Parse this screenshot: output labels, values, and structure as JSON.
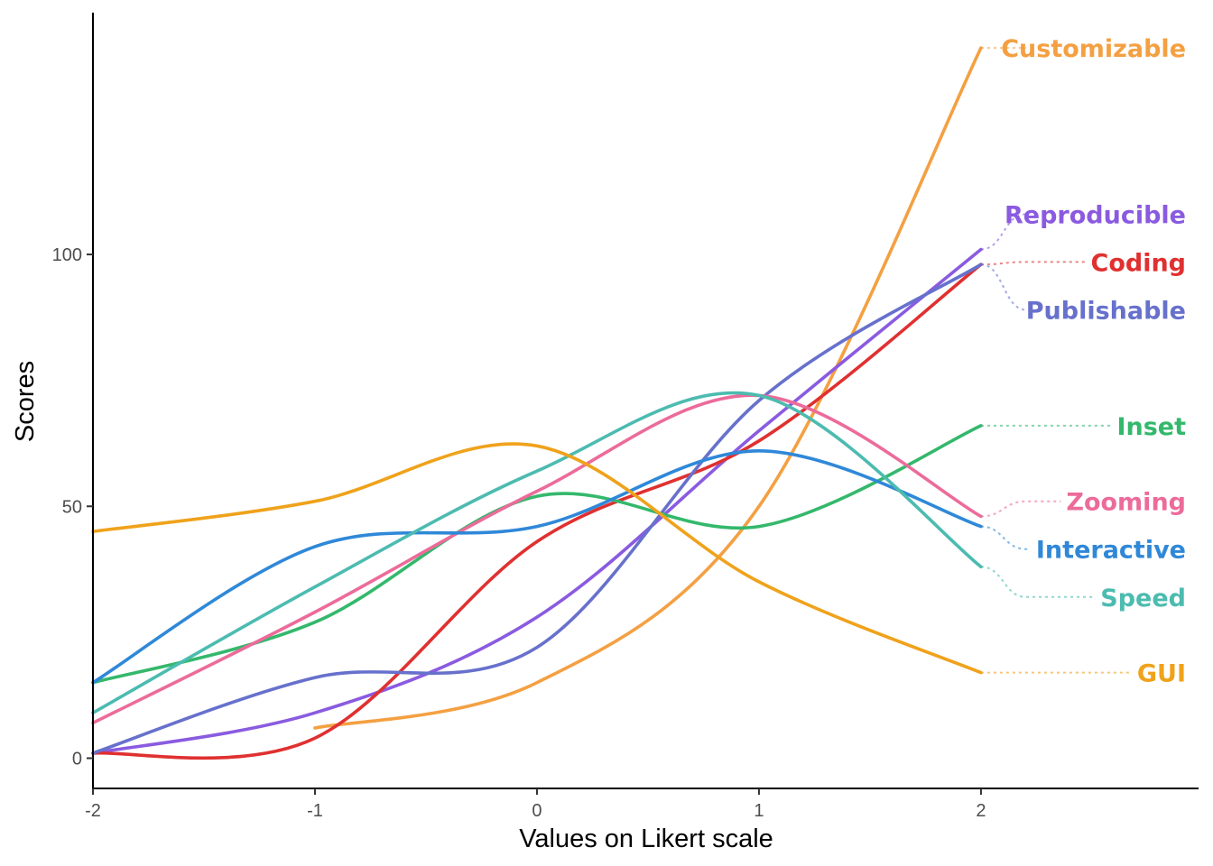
{
  "chart_data": {
    "type": "line",
    "xlabel": "Values on Likert scale",
    "ylabel": "Scores",
    "xlim": [
      -2,
      2.98
    ],
    "ylim": [
      -6,
      148
    ],
    "x_ticks": [
      -2,
      -1,
      0,
      1,
      2
    ],
    "x_tick_labels": [
      "-2",
      "-1",
      "0",
      "1",
      "2"
    ],
    "y_ticks": [
      0,
      50,
      100
    ],
    "y_tick_labels": [
      "0",
      "50",
      "100"
    ],
    "grid": false,
    "legend": "direct labels at right end of lines",
    "series": [
      {
        "name": "Customizable",
        "color": "#F4A042",
        "label_y": 141,
        "x": [
          -1,
          0,
          1,
          2
        ],
        "y": [
          6,
          15,
          50,
          141
        ]
      },
      {
        "name": "Reproducible",
        "color": "#8A5BE0",
        "label_y": 108,
        "x": [
          -2,
          -1,
          0,
          1,
          2
        ],
        "y": [
          1,
          9,
          28,
          65,
          101
        ]
      },
      {
        "name": "Coding",
        "color": "#E03030",
        "label_y": 98.5,
        "x": [
          -2,
          -1,
          0,
          1,
          2
        ],
        "y": [
          1,
          4,
          43,
          63,
          98
        ]
      },
      {
        "name": "Publishable",
        "color": "#6771CC",
        "label_y": 89,
        "x": [
          -2,
          -1,
          0,
          1,
          2
        ],
        "y": [
          1,
          16,
          22,
          71,
          98
        ]
      },
      {
        "name": "Inset",
        "color": "#34B86C",
        "label_y": 66,
        "x": [
          -2,
          -1,
          0,
          1,
          2
        ],
        "y": [
          15,
          27,
          52,
          46,
          66
        ]
      },
      {
        "name": "Zooming",
        "color": "#EC6B9A",
        "label_y": 51,
        "x": [
          -2,
          -1,
          0,
          1,
          2
        ],
        "y": [
          7,
          29,
          53,
          72,
          48
        ]
      },
      {
        "name": "Interactive",
        "color": "#2F88D8",
        "label_y": 41.5,
        "x": [
          -2,
          -1,
          0,
          1,
          2
        ],
        "y": [
          15,
          42,
          46,
          61,
          46
        ]
      },
      {
        "name": "Speed",
        "color": "#4CBBB0",
        "label_y": 32,
        "x": [
          -2,
          -1,
          0,
          1,
          2
        ],
        "y": [
          9,
          34,
          57,
          72,
          38
        ]
      },
      {
        "name": "GUI",
        "color": "#EFA21B",
        "label_y": 17,
        "x": [
          -2,
          -1,
          0,
          1,
          2
        ],
        "y": [
          45,
          51,
          62,
          35,
          17
        ]
      }
    ]
  }
}
